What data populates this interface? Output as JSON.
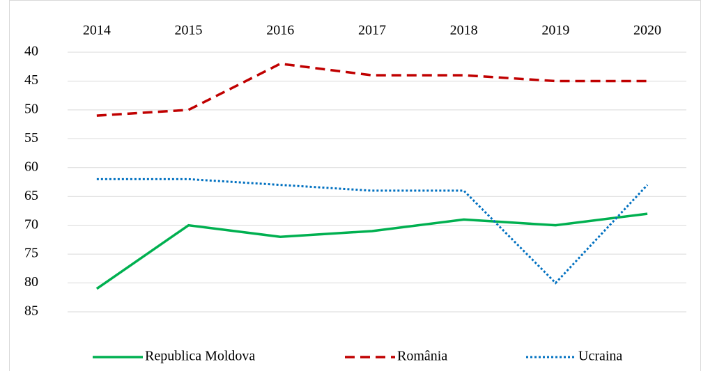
{
  "chart_data": {
    "type": "line",
    "categories": [
      "2014",
      "2015",
      "2016",
      "2017",
      "2018",
      "2019",
      "2020"
    ],
    "series": [
      {
        "name": "Republica Moldova",
        "color": "#00b050",
        "style": "solid",
        "values": [
          81,
          70,
          72,
          71,
          69,
          70,
          68
        ]
      },
      {
        "name": "România",
        "color": "#c00000",
        "style": "dashed",
        "values": [
          51,
          50,
          42,
          44,
          44,
          45,
          45
        ]
      },
      {
        "name": "Ucraina",
        "color": "#0070c0",
        "style": "dotted",
        "values": [
          62,
          62,
          63,
          64,
          64,
          80,
          63
        ]
      }
    ],
    "ylim": [
      40,
      85
    ],
    "yticks": [
      40,
      45,
      50,
      55,
      60,
      65,
      70,
      75,
      80,
      85
    ],
    "y_inverted": true,
    "grid": true,
    "legend": "bottom"
  }
}
